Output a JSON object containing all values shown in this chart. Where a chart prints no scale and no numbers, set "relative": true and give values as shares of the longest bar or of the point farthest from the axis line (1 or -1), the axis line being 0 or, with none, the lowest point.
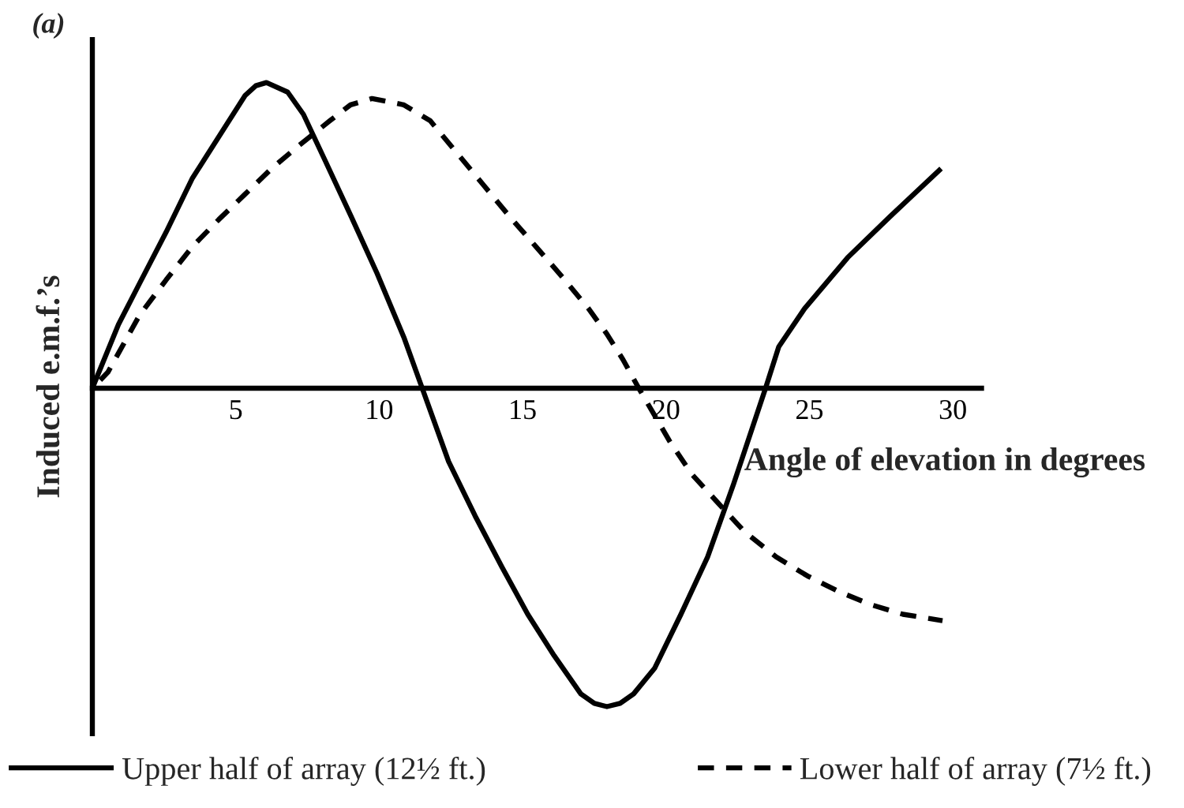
{
  "chart_data": {
    "type": "line",
    "title": "(a)",
    "xlabel": "Angle of elevation in degrees",
    "ylabel": "Induced e.m.f.’s",
    "relative": true,
    "xlim": [
      0,
      31
    ],
    "xticks": [
      5,
      10,
      15,
      20,
      25,
      30
    ],
    "legend": "bottom",
    "series": [
      {
        "name": "Upper half of array (12½ ft.)",
        "color": "#000000",
        "line_style": "solid",
        "x": [
          0,
          0.91,
          1.65,
          2.57,
          3.49,
          4.41,
          5.33,
          5.7,
          6.07,
          6.81,
          7.36,
          8.09,
          9.02,
          9.93,
          10.86,
          11.5,
          12.42,
          13.34,
          14.27,
          15.18,
          16.1,
          17.03,
          17.5,
          17.94,
          18.4,
          18.87,
          19.6,
          20.52,
          21.45,
          22.36,
          23.47,
          23.93,
          24.83,
          26.33,
          27.82,
          29.59
        ],
        "values": [
          0,
          0.2,
          0.33,
          0.49,
          0.66,
          0.79,
          0.92,
          0.95,
          0.96,
          0.93,
          0.86,
          0.72,
          0.54,
          0.36,
          0.16,
          0,
          -0.23,
          -0.4,
          -0.56,
          -0.71,
          -0.84,
          -0.96,
          -0.99,
          -1,
          -0.99,
          -0.96,
          -0.88,
          -0.71,
          -0.53,
          -0.3,
          0,
          0.13,
          0.25,
          0.41,
          0.54,
          0.69
        ]
      },
      {
        "name": "Lower half of array (7½ ft.)",
        "color": "#000000",
        "line_style": "dashed",
        "x": [
          0,
          0.54,
          1.65,
          2.57,
          3.49,
          4.41,
          5.33,
          6.25,
          7.17,
          8.28,
          9.0,
          9.75,
          10.86,
          11.78,
          12.7,
          13.62,
          14.54,
          15.46,
          16.38,
          17.3,
          17.94,
          18.5,
          19.05,
          20.15,
          20.9,
          21.81,
          22.73,
          23.84,
          24.94,
          26.05,
          27.15,
          28.26,
          29.64
        ],
        "values": [
          0,
          0.05,
          0.23,
          0.34,
          0.445,
          0.53,
          0.61,
          0.69,
          0.76,
          0.84,
          0.89,
          0.91,
          0.89,
          0.84,
          0.74,
          0.64,
          0.54,
          0.445,
          0.35,
          0.25,
          0.17,
          0.09,
          0,
          -0.17,
          -0.27,
          -0.36,
          -0.45,
          -0.53,
          -0.59,
          -0.64,
          -0.68,
          -0.71,
          -0.73
        ]
      }
    ]
  }
}
